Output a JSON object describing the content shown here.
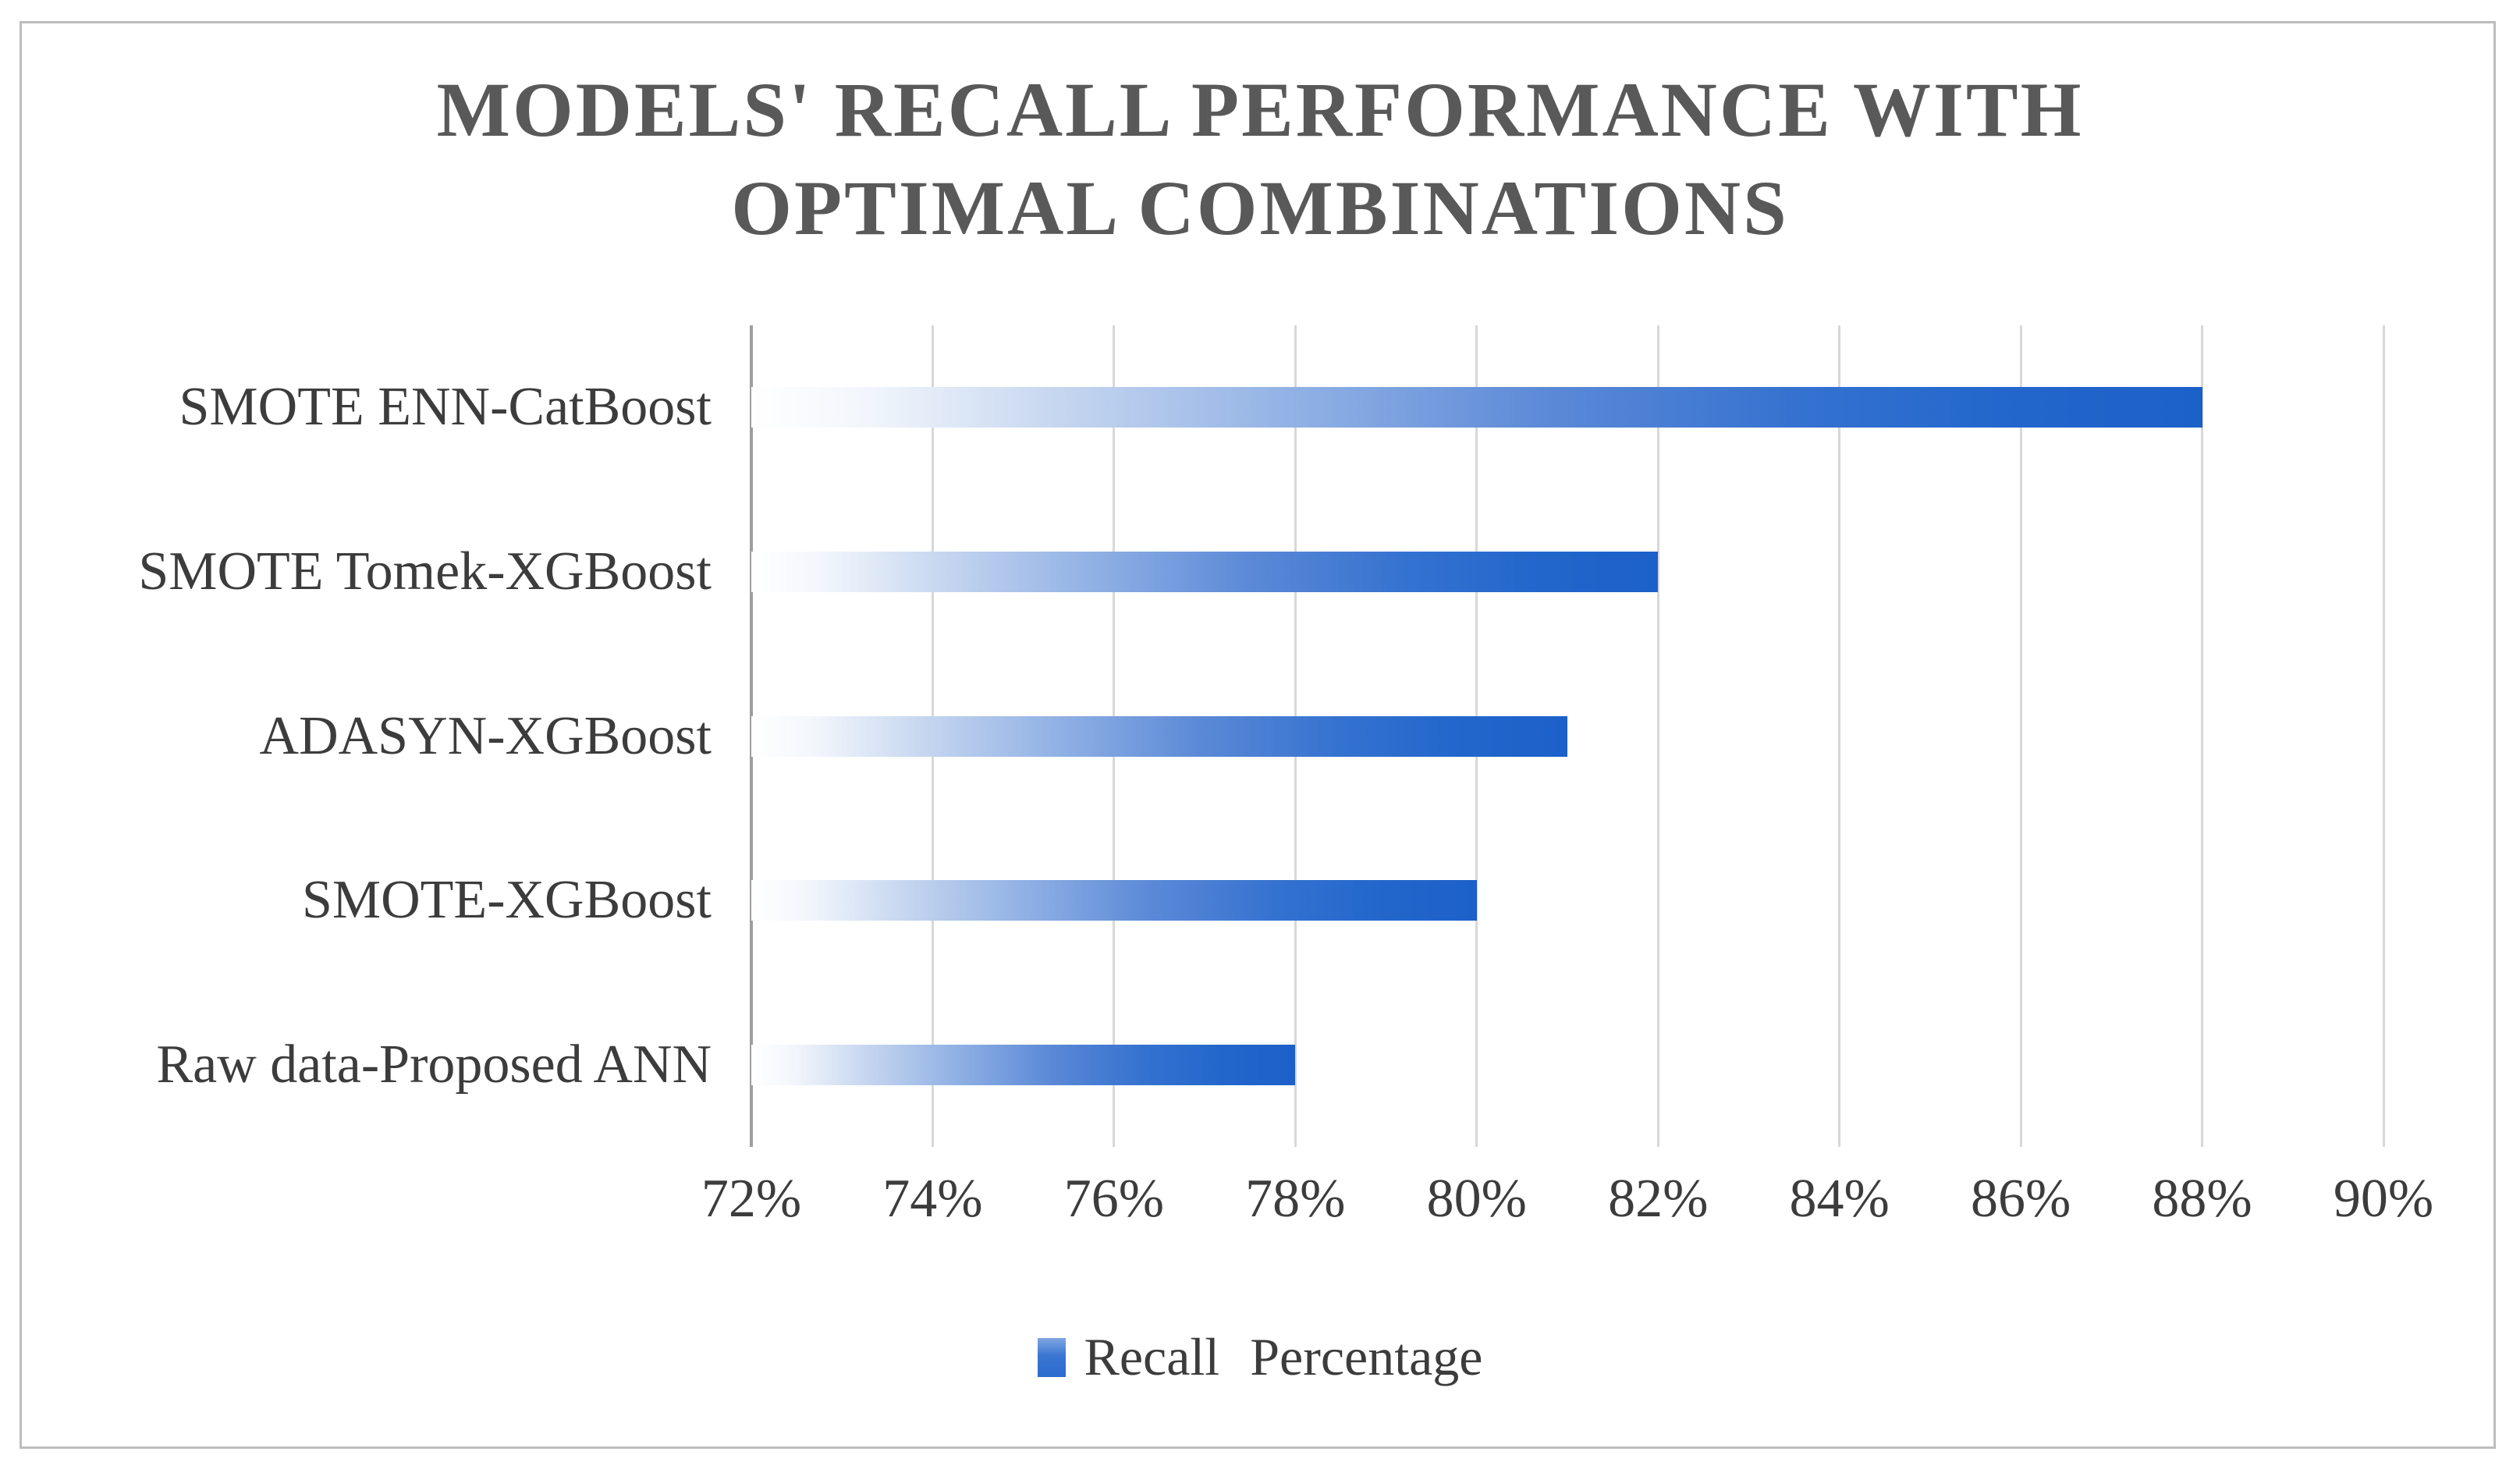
{
  "page": {
    "background_color": "#ffffff",
    "frame_border_color": "#bdbdbd"
  },
  "chart_data": {
    "type": "bar",
    "orientation": "horizontal",
    "title": "MODELS' RECALL PERFORMANCE WITH OPTIMAL COMBINATIONS",
    "categories": [
      "SMOTE ENN-CatBoost",
      "SMOTE Tomek-XGBoost",
      "ADASYN-XGBoost",
      "SMOTE-XGBoost",
      "Raw data-Proposed ANN"
    ],
    "series": [
      {
        "name": "Recall Percentage",
        "values": [
          88,
          82,
          81,
          80,
          78
        ]
      }
    ],
    "value_unit": "%",
    "xlim": [
      72,
      90
    ],
    "xtick_step": 2,
    "xtick_labels": [
      "72%",
      "74%",
      "76%",
      "78%",
      "80%",
      "82%",
      "84%",
      "86%",
      "88%",
      "90%"
    ],
    "grid": "vertical-gridlines-on",
    "legend_position": "bottom",
    "colors": {
      "bar_gradient_start": "#ffffff",
      "bar_gradient_end": "#1c60c9",
      "gridline": "#d8d8d8",
      "axis_line": "#9e9e9e",
      "title_text": "#595959",
      "label_text": "#3c3c3c"
    }
  },
  "legend": {
    "label": "Recall Percentage"
  }
}
